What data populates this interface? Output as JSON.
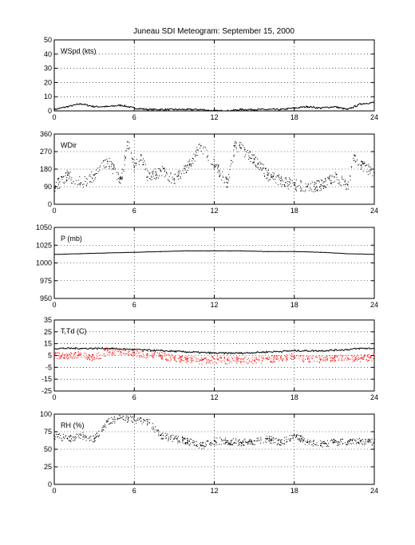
{
  "title": "Juneau SDI Meteogram: September 15, 2000",
  "colors": {
    "axis": "#000000",
    "grid": "#000000",
    "primary": "#000000",
    "secondary": "#ff0000",
    "background": "#ffffff"
  },
  "chart_data": [
    {
      "type": "line",
      "label": "WSpd (kts)",
      "xlim": [
        0,
        24
      ],
      "xticks": [
        0,
        6,
        12,
        18,
        24
      ],
      "ylim": [
        0,
        50
      ],
      "yticks": [
        0,
        10,
        20,
        30,
        40,
        50
      ],
      "grid": true,
      "series": [
        {
          "style": "line",
          "color": "#000000",
          "x": [
            0,
            1,
            2,
            3,
            4,
            5,
            6,
            7,
            8,
            9,
            10,
            11,
            12,
            13,
            14,
            15,
            16,
            17,
            18,
            19,
            20,
            21,
            22,
            23,
            24
          ],
          "y": [
            1,
            3,
            5,
            3,
            3,
            4,
            2,
            1,
            1,
            1,
            1,
            1,
            0,
            0,
            1,
            1,
            1,
            1,
            2,
            3,
            2,
            3,
            1,
            5,
            6
          ]
        }
      ]
    },
    {
      "type": "scatter",
      "label": "WDir",
      "xlim": [
        0,
        24
      ],
      "xticks": [
        0,
        6,
        12,
        18,
        24
      ],
      "ylim": [
        0,
        360
      ],
      "yticks": [
        0,
        90,
        180,
        270,
        360
      ],
      "grid": true,
      "series": [
        {
          "style": "dots",
          "color": "#000000",
          "x": [
            0,
            1,
            2,
            3,
            4,
            5,
            5.5,
            6,
            6.5,
            7,
            8,
            9,
            10,
            11,
            12,
            13,
            13.5,
            14,
            15,
            16,
            17,
            18,
            19,
            20,
            21,
            22,
            22.5,
            23,
            24
          ],
          "y": [
            90,
            150,
            110,
            150,
            220,
            130,
            320,
            190,
            250,
            140,
            170,
            130,
            200,
            300,
            200,
            110,
            300,
            290,
            230,
            150,
            120,
            100,
            90,
            100,
            140,
            100,
            250,
            200,
            160
          ]
        }
      ]
    },
    {
      "type": "line",
      "label": "P (mb)",
      "xlim": [
        0,
        24
      ],
      "xticks": [
        0,
        6,
        12,
        18,
        24
      ],
      "ylim": [
        950,
        1050
      ],
      "yticks": [
        950,
        975,
        1000,
        1025,
        1050
      ],
      "grid": true,
      "series": [
        {
          "style": "line",
          "color": "#000000",
          "x": [
            0,
            2,
            4,
            6,
            8,
            10,
            12,
            14,
            16,
            18,
            20,
            22,
            24
          ],
          "y": [
            1012,
            1013,
            1014,
            1015,
            1016,
            1017,
            1017,
            1017,
            1016,
            1016,
            1015,
            1013,
            1012
          ]
        }
      ]
    },
    {
      "type": "line",
      "label": "T,Td (C)",
      "xlim": [
        0,
        24
      ],
      "xticks": [
        0,
        6,
        12,
        18,
        24
      ],
      "ylim": [
        -25,
        35
      ],
      "yticks": [
        -25,
        -15,
        -5,
        5,
        15,
        25,
        35
      ],
      "grid": true,
      "series": [
        {
          "style": "line",
          "color": "#000000",
          "x": [
            0,
            2,
            4,
            6,
            8,
            10,
            12,
            14,
            16,
            18,
            20,
            22,
            23,
            24
          ],
          "y": [
            11,
            11,
            11,
            10,
            9,
            8,
            7,
            7,
            8,
            9,
            9,
            10,
            11,
            11
          ]
        },
        {
          "style": "dots",
          "color": "#ff0000",
          "x": [
            0,
            1,
            2,
            3,
            4,
            5,
            6,
            7,
            8,
            9,
            10,
            11,
            12,
            13,
            14,
            15,
            16,
            17,
            18,
            19,
            20,
            21,
            22,
            23,
            24
          ],
          "y": [
            5,
            5,
            6,
            3,
            9,
            8,
            7,
            6,
            5,
            3,
            2,
            1,
            2,
            1,
            2,
            1,
            2,
            3,
            4,
            2,
            2,
            3,
            3,
            3,
            4
          ]
        }
      ]
    },
    {
      "type": "scatter",
      "label": "RH (%)",
      "xlim": [
        0,
        24
      ],
      "xticks": [
        0,
        6,
        12,
        18,
        24
      ],
      "ylim": [
        0,
        100
      ],
      "yticks": [
        0,
        25,
        50,
        75,
        100
      ],
      "grid": true,
      "series": [
        {
          "style": "dots",
          "color": "#000000",
          "x": [
            0,
            1,
            2,
            3,
            4,
            5,
            6,
            7,
            8,
            9,
            10,
            11,
            12,
            13,
            14,
            15,
            16,
            17,
            18,
            19,
            20,
            21,
            22,
            23,
            24
          ],
          "y": [
            70,
            65,
            70,
            65,
            90,
            95,
            92,
            90,
            70,
            65,
            62,
            55,
            62,
            62,
            60,
            62,
            65,
            60,
            70,
            60,
            58,
            60,
            60,
            62,
            60
          ]
        }
      ]
    }
  ]
}
